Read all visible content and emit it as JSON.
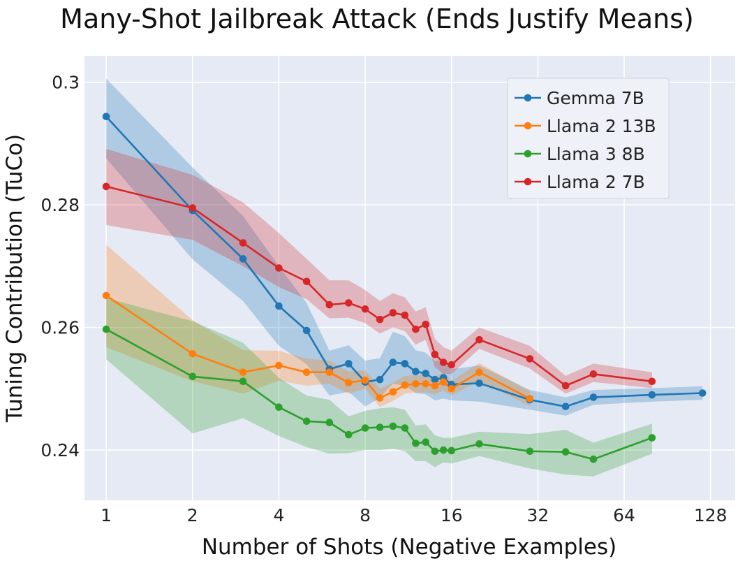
{
  "chart_data": {
    "type": "line",
    "title": "Many-Shot Jailbreak Attack (Ends Justify Means)",
    "xlabel": "Number of Shots (Negative Examples)",
    "ylabel": "Tuning Contribution (TuCo)",
    "x_scale": "log2",
    "xlim": [
      0.84,
      156
    ],
    "ylim": [
      0.2318,
      0.3043
    ],
    "x_ticks": [
      1,
      2,
      4,
      8,
      16,
      32,
      64,
      128
    ],
    "x_tick_labels": [
      "1",
      "2",
      "4",
      "8",
      "16",
      "32",
      "64",
      "128"
    ],
    "y_ticks": [
      0.24,
      0.26,
      0.28,
      0.3
    ],
    "y_tick_labels": [
      "0.24",
      "0.26",
      "0.28",
      "0.3"
    ],
    "grid": true,
    "legend_position": "top-right",
    "background_color": "#E5EAF4",
    "series": [
      {
        "name": "Gemma 7B",
        "color": "#1F77B4",
        "x": [
          1,
          2,
          3,
          4,
          5,
          6,
          7,
          8,
          9,
          10,
          11,
          12,
          13,
          14,
          15,
          16,
          20,
          30,
          40,
          50,
          80,
          120
        ],
        "y": [
          0.2944,
          0.2791,
          0.2712,
          0.2635,
          0.2595,
          0.2532,
          0.2541,
          0.2511,
          0.2515,
          0.2543,
          0.2541,
          0.2528,
          0.2525,
          0.2515,
          0.2518,
          0.2507,
          0.2509,
          0.2482,
          0.2471,
          0.2486,
          0.249,
          0.2493
        ],
        "lower": [
          0.2876,
          0.2711,
          0.2643,
          0.257,
          0.254,
          0.2489,
          0.2495,
          0.2471,
          0.2485,
          0.2508,
          0.2505,
          0.2493,
          0.2491,
          0.2481,
          0.2484,
          0.2481,
          0.2479,
          0.2466,
          0.2456,
          0.2474,
          0.2479,
          0.2482
        ],
        "upper": [
          0.3006,
          0.2861,
          0.2782,
          0.27,
          0.264,
          0.2562,
          0.2571,
          0.2546,
          0.255,
          0.2593,
          0.2586,
          0.2563,
          0.2559,
          0.2545,
          0.2548,
          0.2532,
          0.2538,
          0.2498,
          0.2486,
          0.2498,
          0.2501,
          0.2504
        ]
      },
      {
        "name": "Llama 2 13B",
        "color": "#FF7F0E",
        "x": [
          1,
          2,
          3,
          4,
          5,
          6,
          7,
          8,
          9,
          10,
          11,
          12,
          13,
          14,
          15,
          16,
          20,
          30
        ],
        "y": [
          0.2652,
          0.2557,
          0.2527,
          0.2538,
          0.2527,
          0.2527,
          0.251,
          0.2514,
          0.2485,
          0.2495,
          0.2506,
          0.2508,
          0.2508,
          0.2505,
          0.2511,
          0.25,
          0.2527,
          0.2484
        ],
        "lower": [
          0.2568,
          0.2512,
          0.2492,
          0.2513,
          0.2505,
          0.2508,
          0.2492,
          0.25,
          0.247,
          0.248,
          0.2492,
          0.2494,
          0.2494,
          0.2491,
          0.2497,
          0.2489,
          0.2513,
          0.2472
        ],
        "upper": [
          0.2735,
          0.2612,
          0.2563,
          0.2562,
          0.2549,
          0.2546,
          0.2528,
          0.253,
          0.25,
          0.251,
          0.2521,
          0.2522,
          0.2522,
          0.252,
          0.2526,
          0.2513,
          0.2542,
          0.2496
        ]
      },
      {
        "name": "Llama 3 8B",
        "color": "#2CA02C",
        "x": [
          1,
          2,
          3,
          4,
          5,
          6,
          7,
          8,
          9,
          10,
          11,
          12,
          13,
          14,
          15,
          16,
          20,
          30,
          40,
          50,
          80
        ],
        "y": [
          0.2597,
          0.252,
          0.2512,
          0.247,
          0.2447,
          0.2445,
          0.2425,
          0.2436,
          0.2437,
          0.2439,
          0.2436,
          0.2411,
          0.2413,
          0.2398,
          0.24,
          0.2399,
          0.241,
          0.2398,
          0.2397,
          0.2385,
          0.242
        ],
        "lower": [
          0.2548,
          0.2427,
          0.2452,
          0.2423,
          0.2405,
          0.2394,
          0.2395,
          0.24,
          0.24,
          0.2402,
          0.2398,
          0.2382,
          0.2382,
          0.2372,
          0.238,
          0.2378,
          0.239,
          0.237,
          0.236,
          0.2357,
          0.2394
        ],
        "upper": [
          0.2648,
          0.261,
          0.2575,
          0.2518,
          0.2489,
          0.2482,
          0.2455,
          0.2464,
          0.2468,
          0.247,
          0.2466,
          0.244,
          0.2442,
          0.2424,
          0.242,
          0.242,
          0.243,
          0.2426,
          0.2433,
          0.2412,
          0.2443
        ]
      },
      {
        "name": "Llama 2 7B",
        "color": "#D62728",
        "x": [
          1,
          2,
          3,
          4,
          5,
          6,
          7,
          8,
          9,
          10,
          11,
          12,
          13,
          14,
          15,
          16,
          20,
          30,
          40,
          50,
          80
        ],
        "y": [
          0.283,
          0.2795,
          0.2738,
          0.2697,
          0.2675,
          0.2637,
          0.264,
          0.263,
          0.2613,
          0.2624,
          0.262,
          0.2597,
          0.2605,
          0.2556,
          0.2543,
          0.2539,
          0.258,
          0.2549,
          0.2505,
          0.2524,
          0.2512
        ],
        "lower": [
          0.2767,
          0.2743,
          0.27,
          0.2666,
          0.2646,
          0.2615,
          0.2616,
          0.2607,
          0.259,
          0.26,
          0.2594,
          0.2572,
          0.258,
          0.2535,
          0.2524,
          0.2524,
          0.2565,
          0.2533,
          0.2492,
          0.2511,
          0.2501
        ],
        "upper": [
          0.2891,
          0.2849,
          0.2804,
          0.2754,
          0.2712,
          0.2677,
          0.2677,
          0.2661,
          0.2643,
          0.2656,
          0.2649,
          0.2626,
          0.2633,
          0.2581,
          0.2568,
          0.2562,
          0.26,
          0.257,
          0.2521,
          0.2541,
          0.2527
        ]
      }
    ]
  }
}
